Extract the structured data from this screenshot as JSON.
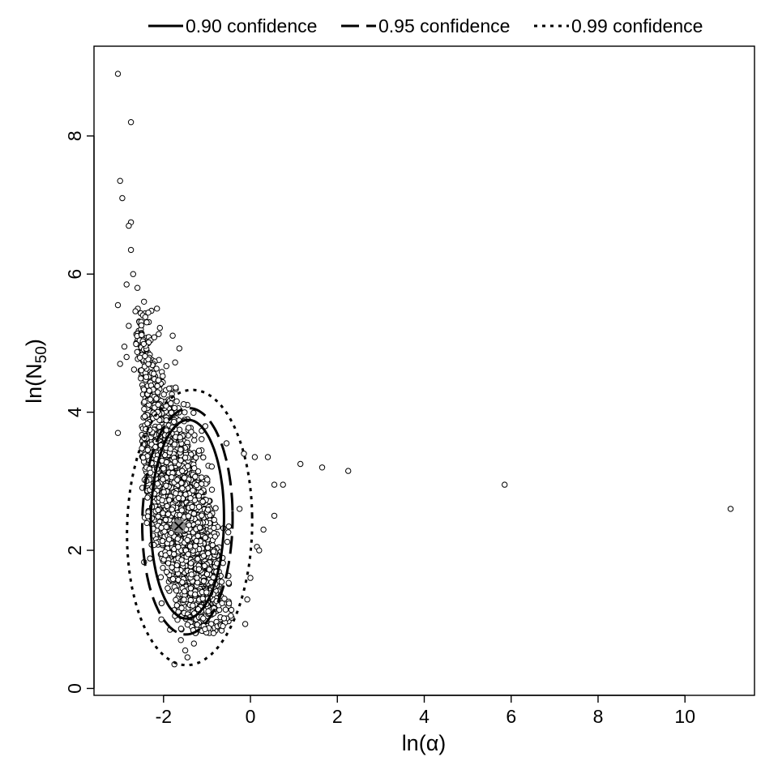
{
  "chart_data": {
    "type": "scatter",
    "xlabel": "ln(α)",
    "ylabel_main": "ln(N",
    "ylabel_sub": "50",
    "ylabel_close": ")",
    "xlim": [
      -3.6,
      11.6
    ],
    "ylim": [
      -0.1,
      9.3
    ],
    "xticks": [
      -2,
      0,
      2,
      4,
      6,
      8,
      10
    ],
    "yticks": [
      0,
      2,
      4,
      6,
      8
    ],
    "grid": false,
    "legend_position": "top",
    "legend": [
      {
        "label": "0.90 confidence",
        "style": "solid"
      },
      {
        "label": "0.95 confidence",
        "style": "dashed"
      },
      {
        "label": "0.99 confidence",
        "style": "dotted"
      }
    ],
    "best_estimate": {
      "x": -1.65,
      "y": 2.35
    },
    "ellipses": [
      {
        "level": "0.90",
        "style": "solid",
        "cx": -1.45,
        "cy": 2.45,
        "rx": 0.85,
        "ry": 1.45,
        "tilt": 0.15
      },
      {
        "level": "0.95",
        "style": "dashed",
        "cx": -1.45,
        "cy": 2.42,
        "rx": 1.05,
        "ry": 1.65,
        "tilt": 0.15
      },
      {
        "level": "0.99",
        "style": "dotted",
        "cx": -1.4,
        "cy": 2.33,
        "rx": 1.45,
        "ry": 2.0,
        "tilt": 0.12
      }
    ],
    "outlier_points": [
      {
        "x": -3.05,
        "y": 8.9
      },
      {
        "x": -2.75,
        "y": 8.2
      },
      {
        "x": -3.0,
        "y": 7.35
      },
      {
        "x": -2.95,
        "y": 7.1
      },
      {
        "x": -2.75,
        "y": 6.75
      },
      {
        "x": -2.8,
        "y": 6.7
      },
      {
        "x": -2.75,
        "y": 6.35
      },
      {
        "x": -2.7,
        "y": 6.0
      },
      {
        "x": -2.85,
        "y": 5.85
      },
      {
        "x": -2.6,
        "y": 5.8
      },
      {
        "x": -3.05,
        "y": 5.55
      },
      {
        "x": -2.15,
        "y": 5.5
      },
      {
        "x": -2.45,
        "y": 5.6
      },
      {
        "x": -2.8,
        "y": 5.25
      },
      {
        "x": -3.0,
        "y": 4.7
      },
      {
        "x": -2.85,
        "y": 4.8
      },
      {
        "x": -3.05,
        "y": 3.7
      },
      {
        "x": -2.9,
        "y": 4.95
      },
      {
        "x": 1.15,
        "y": 3.25
      },
      {
        "x": 1.65,
        "y": 3.2
      },
      {
        "x": 2.25,
        "y": 3.15
      },
      {
        "x": 5.85,
        "y": 2.95
      },
      {
        "x": 11.05,
        "y": 2.6
      },
      {
        "x": 0.75,
        "y": 2.95
      },
      {
        "x": 0.55,
        "y": 2.95
      },
      {
        "x": 0.4,
        "y": 3.35
      },
      {
        "x": 0.55,
        "y": 2.5
      },
      {
        "x": 0.3,
        "y": 2.3
      },
      {
        "x": 0.15,
        "y": 2.05
      },
      {
        "x": 0.2,
        "y": 2.0
      },
      {
        "x": 0.0,
        "y": 1.6
      },
      {
        "x": 0.1,
        "y": 3.35
      },
      {
        "x": -0.15,
        "y": 3.4
      },
      {
        "x": -0.55,
        "y": 3.55
      },
      {
        "x": -0.85,
        "y": 0.8
      },
      {
        "x": -1.45,
        "y": 0.45
      },
      {
        "x": -1.75,
        "y": 0.35
      },
      {
        "x": -1.5,
        "y": 0.55
      },
      {
        "x": -1.6,
        "y": 0.7
      },
      {
        "x": -1.3,
        "y": 0.65
      },
      {
        "x": -1.85,
        "y": 0.85
      },
      {
        "x": -2.05,
        "y": 1.0
      },
      {
        "x": -0.6,
        "y": 1.3
      },
      {
        "x": -0.25,
        "y": 2.6
      }
    ]
  }
}
